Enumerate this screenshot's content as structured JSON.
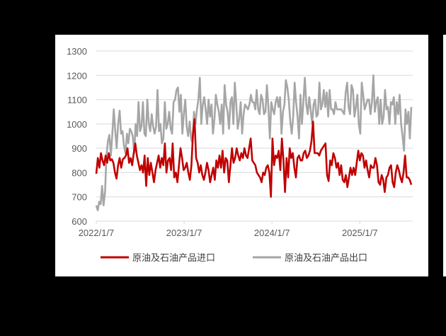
{
  "chart_data": {
    "type": "line",
    "title": "",
    "xlabel": "",
    "ylabel": "",
    "ylim": [
      600,
      1300
    ],
    "yticks": [
      600,
      700,
      800,
      900,
      1000,
      1100,
      1200,
      1300
    ],
    "xtick_labels": [
      "2022/1/7",
      "2023/1/7",
      "2024/1/7",
      "2025/1/7"
    ],
    "x_start": "2022/1/7",
    "x_step": "weekly",
    "grid": true,
    "legend_position": "bottom",
    "series": [
      {
        "name": "原油及石油产品进口",
        "color": "#C00000",
        "values": [
          795,
          860,
          820,
          880,
          850,
          830,
          870,
          840,
          880,
          850,
          855,
          840,
          800,
          775,
          830,
          860,
          820,
          855,
          860,
          870,
          900,
          840,
          860,
          830,
          880,
          920,
          870,
          840,
          810,
          830,
          800,
          870,
          745,
          860,
          790,
          840,
          800,
          760,
          810,
          840,
          870,
          820,
          860,
          830,
          920,
          800,
          850,
          860,
          810,
          920,
          780,
          800,
          760,
          830,
          900,
          860,
          810,
          820,
          840,
          800,
          770,
          830,
          960,
          1020,
          860,
          840,
          800,
          830,
          790,
          770,
          800,
          840,
          810,
          760,
          790,
          820,
          770,
          850,
          820,
          870,
          820,
          890,
          800,
          860,
          850,
          760,
          830,
          900,
          840,
          860,
          900,
          870,
          850,
          880,
          860,
          900,
          870,
          860,
          900,
          940,
          850,
          840,
          830,
          800,
          790,
          780,
          760,
          800,
          790,
          820,
          830,
          800,
          700,
          940,
          830,
          870,
          860,
          890,
          810,
          940,
          850,
          720,
          860,
          780,
          900,
          860,
          880,
          820,
          780,
          860,
          870,
          850,
          850,
          880,
          890,
          860,
          870,
          890,
          930,
          1010,
          880,
          880,
          880,
          870,
          890,
          900,
          910,
          920,
          790,
          765,
          850,
          830,
          880,
          860,
          820,
          840,
          790,
          830,
          770,
          760,
          790,
          740,
          780,
          820,
          790,
          820,
          790,
          840,
          890,
          850,
          880,
          870,
          820,
          850,
          810,
          780,
          830,
          820,
          820,
          860,
          830,
          760,
          750,
          790,
          770,
          720,
          780,
          790,
          820,
          830,
          760,
          740,
          800,
          830,
          810,
          780,
          760,
          800,
          870,
          780,
          780,
          770,
          750
        ],
        "values_note": "estimated weekly values read from pixels"
      },
      {
        "name": "原油及石油产品出口",
        "color": "#A6A6A6",
        "values": [
          665,
          645,
          680,
          670,
          745,
          665,
          720,
          870,
          930,
          955,
          870,
          960,
          1060,
          970,
          900,
          1000,
          1055,
          960,
          970,
          910,
          880,
          960,
          920,
          980,
          970,
          950,
          880,
          1000,
          950,
          1090,
          970,
          990,
          1090,
          960,
          950,
          1100,
          1000,
          970,
          1040,
          990,
          960,
          990,
          1140,
          970,
          1000,
          920,
          940,
          1090,
          980,
          1000,
          1050,
          980,
          960,
          1090,
          1100,
          1140,
          1150,
          1050,
          1120,
          960,
          1040,
          1100,
          990,
          950,
          1010,
          940,
          920,
          1050,
          1000,
          1060,
          1100,
          1190,
          1000,
          1080,
          1110,
          1060,
          1000,
          1100,
          1030,
          1080,
          960,
          1020,
          1120,
          1080,
          1050,
          1000,
          1080,
          960,
          1160,
          1080,
          1050,
          980,
          1090,
          1110,
          1000,
          1170,
          1080,
          980,
          1020,
          1090,
          960,
          1040,
          1080,
          1070,
          1060,
          1080,
          1120,
          1090,
          1090,
          1060,
          1140,
          1060,
          1040,
          1120,
          1100,
          1040,
          1050,
          1160,
          1070,
          940,
          1090,
          1060,
          1040,
          1090,
          1110,
          1070,
          1110,
          960,
          1050,
          1080,
          1180,
          1150,
          1100,
          1010,
          960,
          1030,
          1170,
          1090,
          1030,
          940,
          1120,
          1000,
          1090,
          1190,
          1080,
          1040,
          1110,
          1060,
          1000,
          1080,
          1100,
          1030,
          1040,
          1170,
          1060,
          1080,
          1140,
          1070,
          1130,
          1030,
          1140,
          1060,
          1060,
          1040,
          1090,
          1060,
          1060,
          1060,
          1060,
          1050,
          1040,
          1130,
          1170,
          1070,
          1040,
          1160,
          1140,
          1030,
          1070,
          1120,
          1000,
          960,
          1170,
          1120,
          1060,
          1080,
          1100,
          1100,
          1040,
          1090,
          1200,
          1050,
          1090,
          1110,
          1000,
          1100,
          1000,
          1030,
          1140,
          1060,
          1070,
          1000,
          1090,
          1080,
          1110,
          1000,
          1090,
          1040,
          1120,
          1000,
          950,
          890,
          1060,
          1000,
          1050,
          940,
          1070
        ]
      }
    ]
  },
  "legend": {
    "items": [
      {
        "label": "原油及石油产品进口",
        "color": "#C00000"
      },
      {
        "label": "原油及石油产品出口",
        "color": "#A6A6A6"
      }
    ]
  }
}
